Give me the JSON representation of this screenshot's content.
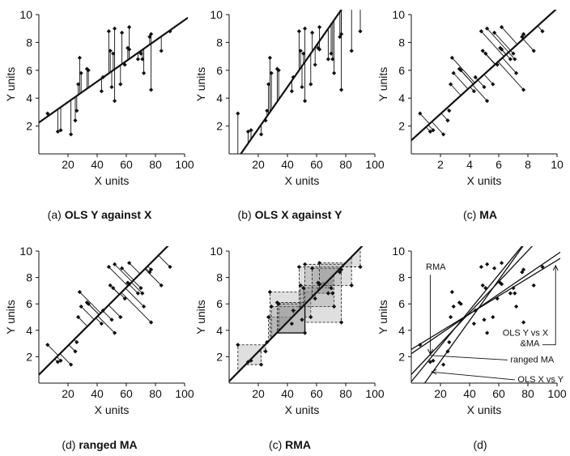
{
  "chart_data": [
    {
      "type": "scatter",
      "caption_prefix": "(a)",
      "caption_bold": "OLS Y against X",
      "xlabel": "X units",
      "ylabel": "Y units",
      "xlim": [
        0,
        100
      ],
      "ylim": [
        0,
        10
      ],
      "xticks": [
        "20",
        "40",
        "60",
        "80",
        "100"
      ],
      "yticks": [
        "2",
        "4",
        "6",
        "8",
        "10"
      ],
      "points": [
        [
          6,
          2.9
        ],
        [
          13,
          1.6
        ],
        [
          15,
          1.7
        ],
        [
          22,
          1.4
        ],
        [
          25,
          2.4
        ],
        [
          26,
          3.1
        ],
        [
          27,
          5.0
        ],
        [
          28,
          6.9
        ],
        [
          29,
          5.8
        ],
        [
          33,
          6.1
        ],
        [
          34,
          6.0
        ],
        [
          43,
          4.5
        ],
        [
          44,
          5.5
        ],
        [
          48,
          8.8
        ],
        [
          49,
          7.4
        ],
        [
          50,
          4.8
        ],
        [
          51,
          7.2
        ],
        [
          52,
          3.8
        ],
        [
          52,
          9.0
        ],
        [
          56,
          5.0
        ],
        [
          57,
          8.7
        ],
        [
          59,
          6.4
        ],
        [
          61,
          7.6
        ],
        [
          62,
          9.1
        ],
        [
          62,
          7.5
        ],
        [
          68,
          6.8
        ],
        [
          70,
          7.2
        ],
        [
          71,
          6.8
        ],
        [
          72,
          5.8
        ],
        [
          76,
          8.4
        ],
        [
          77,
          8.6
        ],
        [
          77,
          4.6
        ],
        [
          84,
          7.4
        ],
        [
          90,
          8.8
        ]
      ],
      "fit_line": [
        [
          0,
          2.25
        ],
        [
          106,
          10.05
        ]
      ],
      "residuals": "vertical"
    },
    {
      "type": "scatter",
      "caption_prefix": "(b)",
      "caption_bold": "OLS X against Y",
      "xlabel": "X units",
      "ylabel": "Y units",
      "xlim": [
        0,
        100
      ],
      "ylim": [
        0,
        10
      ],
      "xticks": [
        "20",
        "40",
        "60",
        "80",
        "100"
      ],
      "yticks": [
        "2",
        "4",
        "6",
        "8",
        "10"
      ],
      "points": [
        [
          6,
          2.9
        ],
        [
          13,
          1.6
        ],
        [
          15,
          1.7
        ],
        [
          22,
          1.4
        ],
        [
          25,
          2.4
        ],
        [
          26,
          3.1
        ],
        [
          27,
          5.0
        ],
        [
          28,
          6.9
        ],
        [
          29,
          5.8
        ],
        [
          33,
          6.1
        ],
        [
          34,
          6.0
        ],
        [
          43,
          4.5
        ],
        [
          44,
          5.5
        ],
        [
          48,
          8.8
        ],
        [
          49,
          7.4
        ],
        [
          50,
          4.8
        ],
        [
          51,
          7.2
        ],
        [
          52,
          3.8
        ],
        [
          52,
          9.0
        ],
        [
          56,
          5.0
        ],
        [
          57,
          8.7
        ],
        [
          59,
          6.4
        ],
        [
          61,
          7.6
        ],
        [
          62,
          9.1
        ],
        [
          62,
          7.5
        ],
        [
          68,
          6.8
        ],
        [
          70,
          7.2
        ],
        [
          71,
          6.8
        ],
        [
          72,
          5.8
        ],
        [
          76,
          8.4
        ],
        [
          77,
          8.6
        ],
        [
          77,
          4.6
        ],
        [
          84,
          7.4
        ],
        [
          90,
          8.8
        ]
      ],
      "fit_line": [
        [
          3,
          -0.75
        ],
        [
          83,
          11.25
        ]
      ],
      "residuals": "vertical"
    },
    {
      "type": "scatter",
      "caption_prefix": "(c)",
      "caption_bold": "MA",
      "xlabel": "X units",
      "ylabel": "Y units",
      "xlim": [
        0,
        10
      ],
      "ylim": [
        0,
        10
      ],
      "xticks": [
        "2",
        "4",
        "6",
        "8",
        "10"
      ],
      "yticks": [
        "2",
        "4",
        "6",
        "8",
        "10"
      ],
      "points": [
        [
          0.6,
          2.9
        ],
        [
          1.3,
          1.6
        ],
        [
          1.5,
          1.7
        ],
        [
          2.2,
          1.4
        ],
        [
          2.5,
          2.4
        ],
        [
          2.6,
          3.1
        ],
        [
          2.7,
          5.0
        ],
        [
          2.8,
          6.9
        ],
        [
          2.9,
          5.8
        ],
        [
          3.3,
          6.1
        ],
        [
          3.4,
          6.0
        ],
        [
          4.3,
          4.5
        ],
        [
          4.4,
          5.5
        ],
        [
          4.8,
          8.8
        ],
        [
          4.9,
          7.4
        ],
        [
          5.0,
          4.8
        ],
        [
          5.1,
          7.2
        ],
        [
          5.2,
          3.8
        ],
        [
          5.2,
          9.0
        ],
        [
          5.6,
          5.0
        ],
        [
          5.7,
          8.7
        ],
        [
          5.9,
          6.4
        ],
        [
          6.1,
          7.6
        ],
        [
          6.2,
          9.1
        ],
        [
          6.2,
          7.5
        ],
        [
          6.8,
          6.8
        ],
        [
          7.0,
          7.2
        ],
        [
          7.1,
          6.8
        ],
        [
          7.2,
          5.8
        ],
        [
          7.6,
          8.4
        ],
        [
          7.7,
          8.6
        ],
        [
          7.7,
          4.6
        ],
        [
          8.4,
          7.4
        ],
        [
          9.0,
          8.8
        ]
      ],
      "fit_line": [
        [
          -0.5,
          0.5
        ],
        [
          10.9,
          11.3
        ]
      ],
      "residuals": "perpendicular"
    },
    {
      "type": "scatter",
      "caption_prefix": "(d)",
      "caption_bold": "ranged MA",
      "xlabel": "X units",
      "ylabel": "Y units",
      "xlim": [
        0,
        100
      ],
      "ylim": [
        0,
        10
      ],
      "xticks": [
        "20",
        "40",
        "60",
        "80",
        "100"
      ],
      "yticks": [
        "2",
        "4",
        "6",
        "8",
        "10"
      ],
      "points": [
        [
          6,
          2.9
        ],
        [
          13,
          1.6
        ],
        [
          15,
          1.7
        ],
        [
          22,
          1.4
        ],
        [
          25,
          2.4
        ],
        [
          26,
          3.1
        ],
        [
          27,
          5.0
        ],
        [
          28,
          6.9
        ],
        [
          29,
          5.8
        ],
        [
          33,
          6.1
        ],
        [
          34,
          6.0
        ],
        [
          43,
          4.5
        ],
        [
          44,
          5.5
        ],
        [
          48,
          8.8
        ],
        [
          49,
          7.4
        ],
        [
          50,
          4.8
        ],
        [
          51,
          7.2
        ],
        [
          52,
          3.8
        ],
        [
          52,
          9.0
        ],
        [
          56,
          5.0
        ],
        [
          57,
          8.7
        ],
        [
          59,
          6.4
        ],
        [
          61,
          7.6
        ],
        [
          62,
          9.1
        ],
        [
          62,
          7.5
        ],
        [
          68,
          6.8
        ],
        [
          70,
          7.2
        ],
        [
          71,
          6.8
        ],
        [
          72,
          5.8
        ],
        [
          76,
          8.4
        ],
        [
          77,
          8.6
        ],
        [
          77,
          4.6
        ],
        [
          84,
          7.4
        ],
        [
          90,
          8.8
        ]
      ],
      "fit_line": [
        [
          -3,
          0.3
        ],
        [
          95,
          11.1
        ]
      ],
      "residuals": "perpendicular"
    },
    {
      "type": "scatter",
      "caption_prefix": "(c)",
      "caption_bold": "RMA",
      "xlabel": "X units",
      "ylabel": "Y units",
      "xlim": [
        0,
        100
      ],
      "ylim": [
        0,
        10
      ],
      "xticks": [
        "20",
        "40",
        "60",
        "80",
        "100"
      ],
      "yticks": [
        "2",
        "4",
        "6",
        "8",
        "10"
      ],
      "points": [
        [
          6,
          2.9
        ],
        [
          13,
          1.6
        ],
        [
          15,
          1.7
        ],
        [
          22,
          1.4
        ],
        [
          25,
          2.4
        ],
        [
          26,
          3.1
        ],
        [
          27,
          5.0
        ],
        [
          28,
          6.9
        ],
        [
          29,
          5.8
        ],
        [
          33,
          6.1
        ],
        [
          34,
          6.0
        ],
        [
          43,
          4.5
        ],
        [
          44,
          5.5
        ],
        [
          48,
          8.8
        ],
        [
          49,
          7.4
        ],
        [
          50,
          4.8
        ],
        [
          51,
          7.2
        ],
        [
          52,
          3.8
        ],
        [
          52,
          9.0
        ],
        [
          56,
          5.0
        ],
        [
          57,
          8.7
        ],
        [
          59,
          6.4
        ],
        [
          61,
          7.6
        ],
        [
          62,
          9.1
        ],
        [
          62,
          7.5
        ],
        [
          68,
          6.8
        ],
        [
          70,
          7.2
        ],
        [
          71,
          6.8
        ],
        [
          72,
          5.8
        ],
        [
          76,
          8.4
        ],
        [
          77,
          8.6
        ],
        [
          77,
          4.6
        ],
        [
          84,
          7.4
        ],
        [
          90,
          8.8
        ]
      ],
      "fit_line": [
        [
          -3,
          -0.2
        ],
        [
          95,
          10.8
        ]
      ],
      "residuals": "triangles"
    },
    {
      "type": "scatter",
      "caption_prefix": "(d)",
      "caption_bold": "",
      "xlabel": "X units",
      "ylabel": "Y units",
      "xlim": [
        0,
        100
      ],
      "ylim": [
        0,
        10
      ],
      "xticks": [
        "20",
        "40",
        "60",
        "80",
        "100"
      ],
      "yticks": [
        "2",
        "4",
        "6",
        "8",
        "10"
      ],
      "points": [
        [
          6,
          2.9
        ],
        [
          13,
          1.6
        ],
        [
          15,
          1.7
        ],
        [
          22,
          1.4
        ],
        [
          25,
          2.4
        ],
        [
          26,
          3.1
        ],
        [
          27,
          5.0
        ],
        [
          28,
          6.9
        ],
        [
          29,
          5.8
        ],
        [
          33,
          6.1
        ],
        [
          34,
          6.0
        ],
        [
          43,
          4.5
        ],
        [
          44,
          5.5
        ],
        [
          48,
          8.8
        ],
        [
          49,
          7.4
        ],
        [
          50,
          4.8
        ],
        [
          51,
          7.2
        ],
        [
          52,
          3.8
        ],
        [
          52,
          9.0
        ],
        [
          56,
          5.0
        ],
        [
          57,
          8.7
        ],
        [
          59,
          6.4
        ],
        [
          61,
          7.6
        ],
        [
          62,
          9.1
        ],
        [
          62,
          7.5
        ],
        [
          68,
          6.8
        ],
        [
          70,
          7.2
        ],
        [
          71,
          6.8
        ],
        [
          72,
          5.8
        ],
        [
          76,
          8.4
        ],
        [
          77,
          8.6
        ],
        [
          77,
          4.6
        ],
        [
          84,
          7.4
        ],
        [
          90,
          8.8
        ]
      ],
      "lines": [
        {
          "name": "OLS Y vs X",
          "pts": [
            [
              -3,
              2.35
            ],
            [
              106,
              9.7
            ]
          ]
        },
        {
          "name": "MA",
          "pts": [
            [
              -3,
              2.0
            ],
            [
              106,
              10.2
            ]
          ]
        },
        {
          "name": "ranged MA",
          "pts": [
            [
              -3,
              0.3
            ],
            [
              90,
              11.2
            ]
          ]
        },
        {
          "name": "RMA",
          "pts": [
            [
              -3,
              -0.3
            ],
            [
              82,
              11.2
            ]
          ]
        },
        {
          "name": "OLS X vs Y",
          "pts": [
            [
              4,
              -0.8
            ],
            [
              82,
              11.2
            ]
          ]
        }
      ],
      "annotations": [
        "RMA",
        "OLS Y vs X",
        "&MA",
        "ranged MA",
        "OLS X vs Y"
      ],
      "residuals": "none"
    }
  ]
}
